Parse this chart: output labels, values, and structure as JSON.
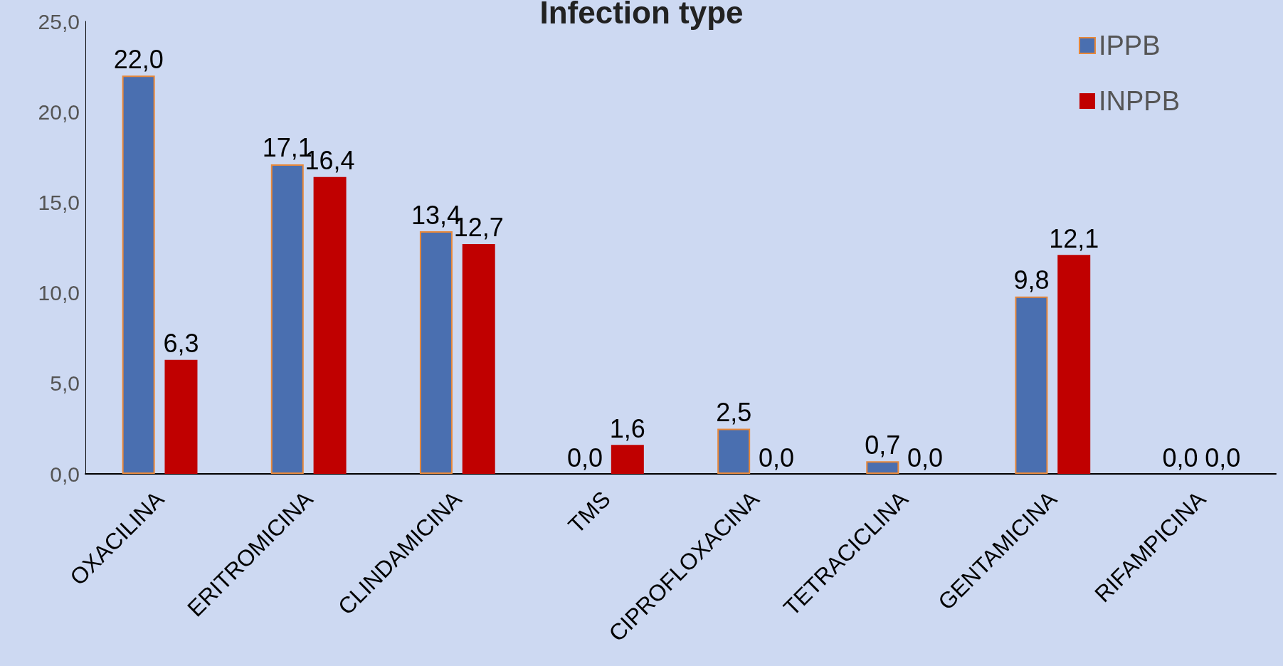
{
  "chart_data": {
    "type": "bar",
    "title": "Infection type",
    "categories": [
      "OXACILINA",
      "ERITROMICINA",
      "CLINDAMICINA",
      "TMS",
      "CIPROFLOXACINA",
      "TETRACICLINA",
      "GENTAMICINA",
      "RIFAMPICINA"
    ],
    "series": [
      {
        "name": "IPPB",
        "color": "#4a6fb0",
        "values": [
          22.0,
          17.1,
          13.4,
          0.0,
          2.5,
          0.7,
          9.8,
          0.0
        ],
        "value_labels": [
          "22,0",
          "17,1",
          "13,4",
          "0,0",
          "2,5",
          "0,7",
          "9,8",
          "0,0"
        ]
      },
      {
        "name": "INPPB",
        "color": "#c00000",
        "values": [
          6.3,
          16.4,
          12.7,
          1.6,
          0.0,
          0.0,
          12.1,
          0.0
        ],
        "value_labels": [
          "6,3",
          "16,4",
          "12,7",
          "1,6",
          "0,0",
          "0,0",
          "12,1",
          "0,0"
        ]
      }
    ],
    "ylim": [
      0,
      25
    ],
    "yticks": [
      {
        "value": 0,
        "label": "0,0"
      },
      {
        "value": 5,
        "label": "5,0"
      },
      {
        "value": 10,
        "label": "10,0"
      },
      {
        "value": 15,
        "label": "15,0"
      },
      {
        "value": 20,
        "label": "20,0"
      },
      {
        "value": 25,
        "label": "25,0"
      }
    ],
    "grid": false,
    "legend": "top right"
  }
}
